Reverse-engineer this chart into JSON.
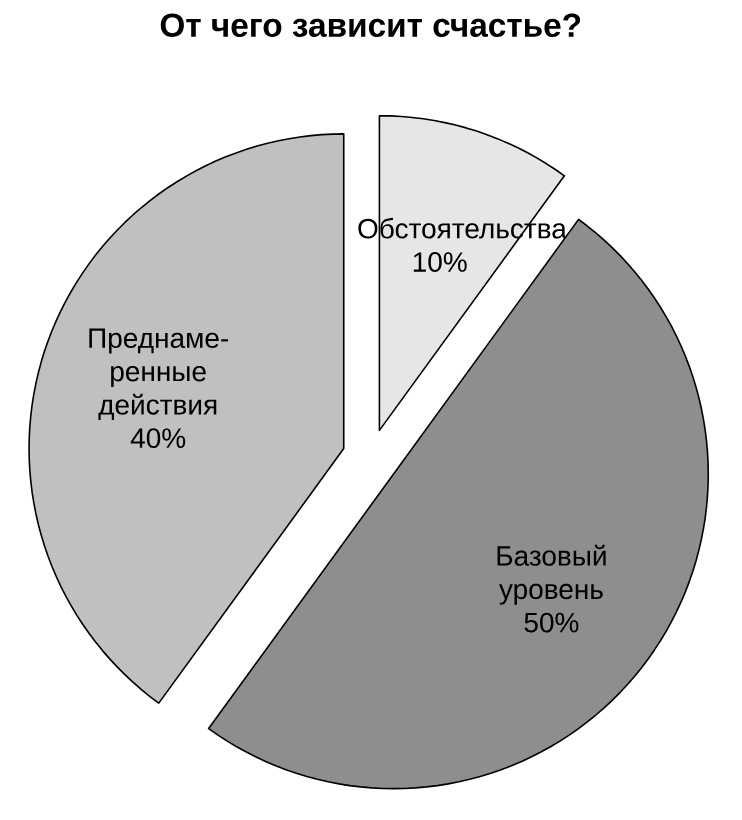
{
  "chart_data": {
    "type": "pie",
    "title": "От чего зависит счастье?",
    "categories": [
      "Обстоятельства",
      "Базовый уровень",
      "Преднаме-ренные действия"
    ],
    "values": [
      10,
      50,
      40
    ],
    "colors": [
      "#e6e6e6",
      "#8e8e8e",
      "#c0c0c0"
    ],
    "value_labels": [
      "10%",
      "50%",
      "40%"
    ]
  }
}
